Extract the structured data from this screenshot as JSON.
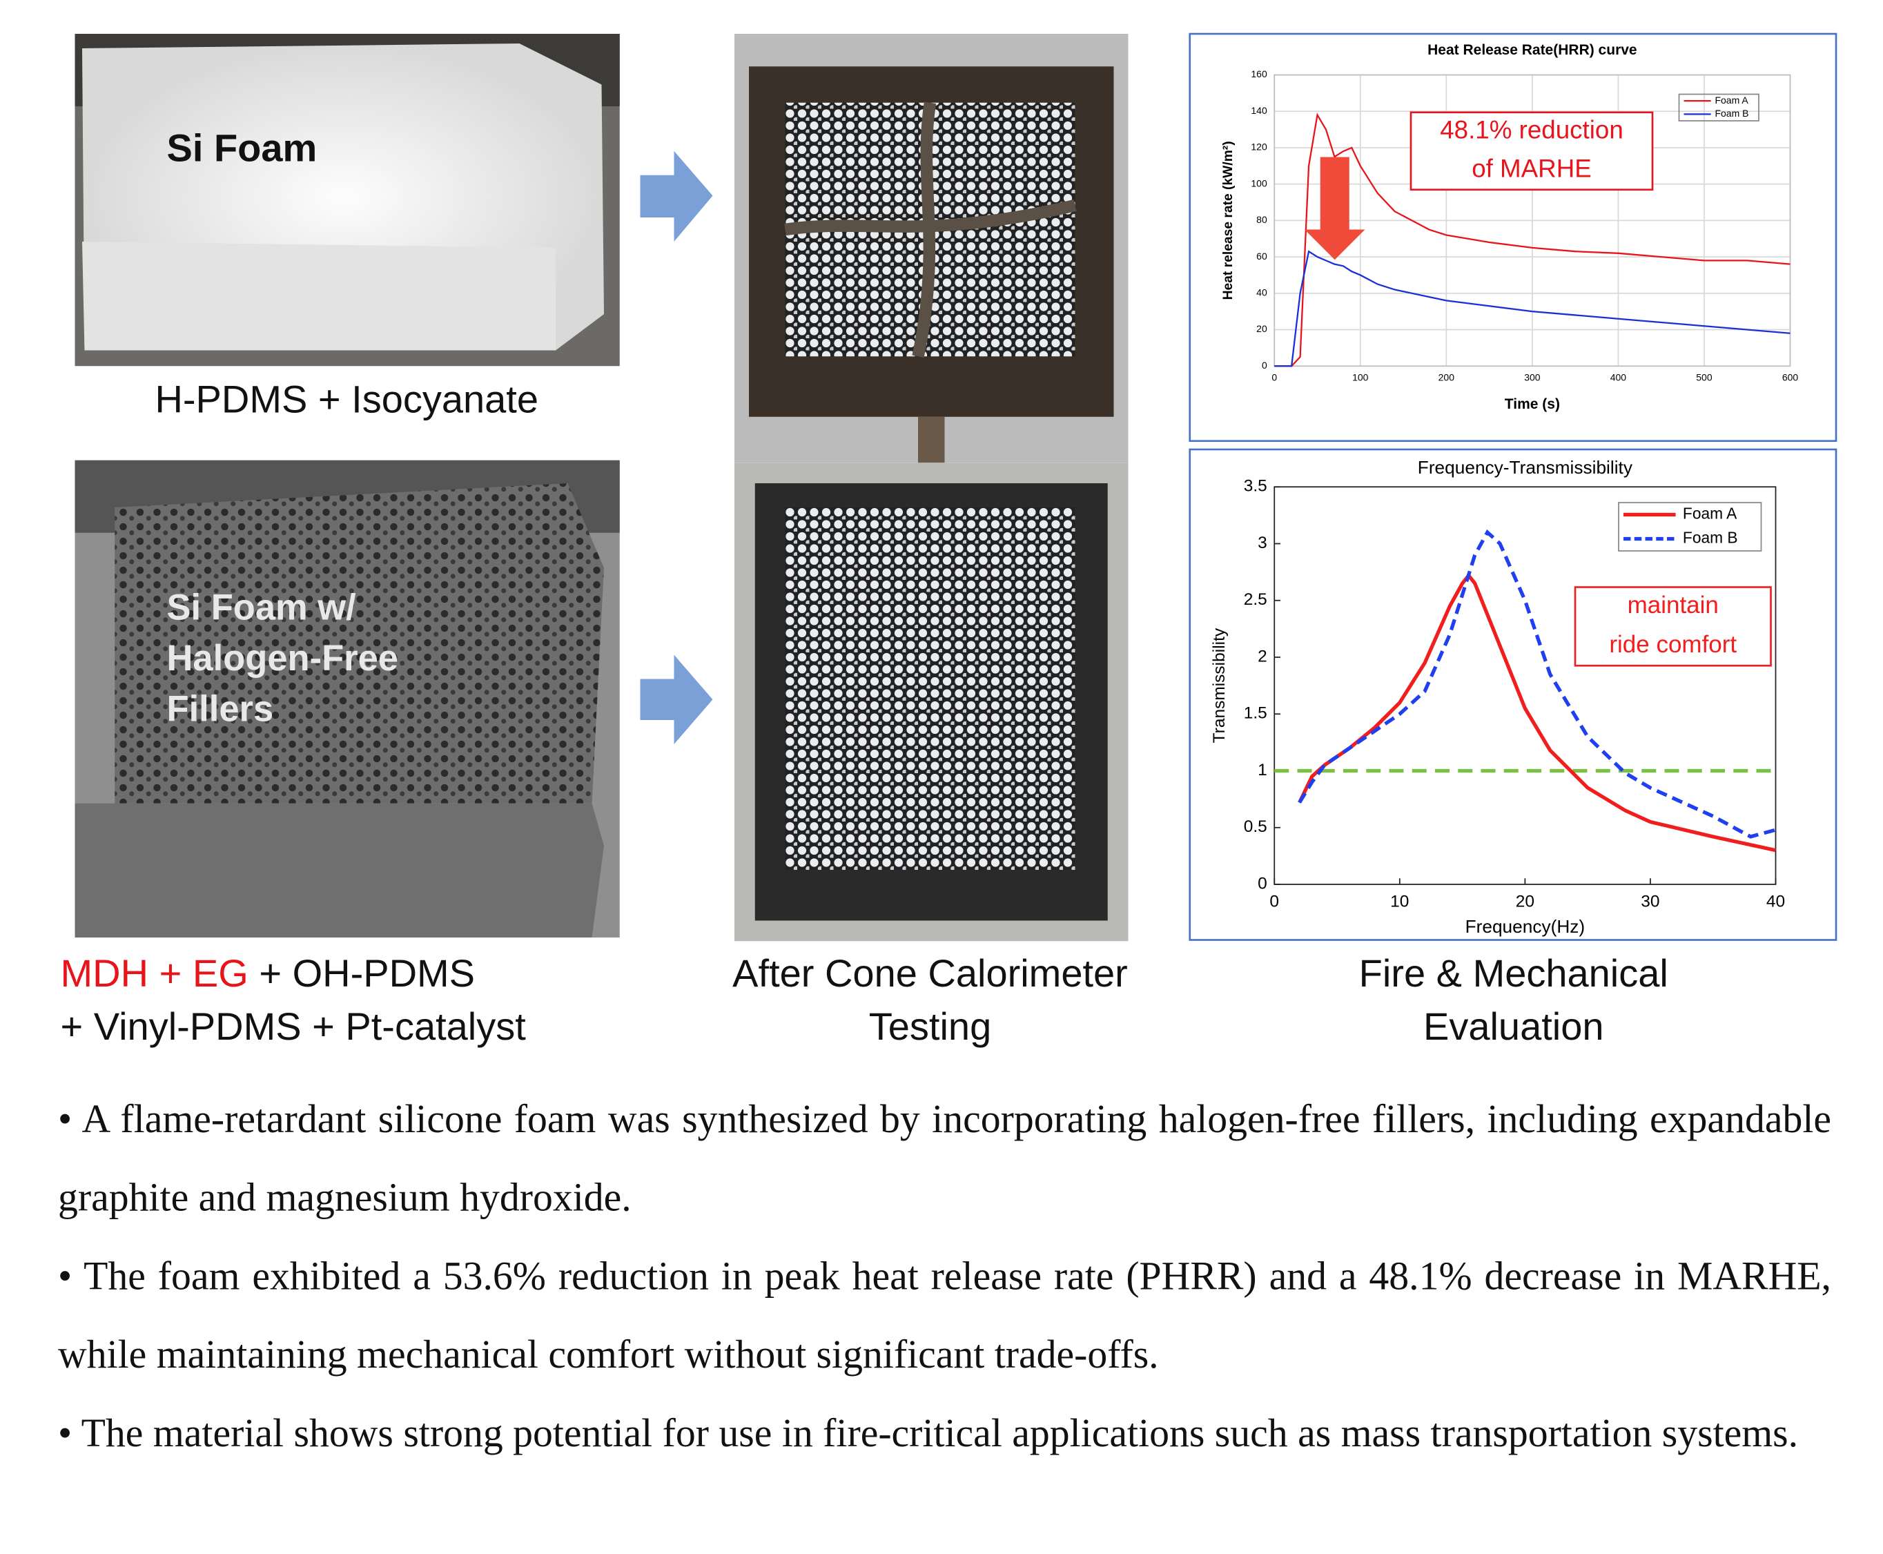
{
  "photos": [
    {
      "label": [
        "Si Foam"
      ],
      "caption": [
        "H-PDMS + Isocyanate"
      ]
    },
    {
      "label": [
        "Si Foam  w/",
        "Halogen-Free",
        "Fillers"
      ],
      "caption_red": "MDH + EG",
      "caption": [
        " + OH-PDMS",
        "+ Vinyl-PDMS + Pt-catalyst"
      ]
    },
    {
      "caption": [
        "After Cone Calorimeter",
        "Testing"
      ]
    },
    {
      "caption": [
        "Fire & Mechanical",
        "Evaluation"
      ]
    }
  ],
  "chart_data": [
    {
      "type": "line",
      "title": "Heat Release Rate(HRR) curve",
      "x_label": "Time (s)",
      "y_label": "Heat release rate (kW/m²)",
      "xlim": [
        0,
        600
      ],
      "xticks": [
        0,
        100,
        200,
        300,
        400,
        500,
        600
      ],
      "ylim": [
        0,
        160
      ],
      "yticks": [
        0,
        20,
        40,
        60,
        80,
        100,
        120,
        140,
        160
      ],
      "grid": true,
      "series": [
        {
          "name": "Foam A",
          "color": "#e8141b",
          "linestyle": "solid",
          "x": [
            0,
            20,
            30,
            40,
            50,
            60,
            70,
            80,
            90,
            100,
            120,
            140,
            160,
            180,
            200,
            250,
            300,
            350,
            400,
            450,
            500,
            550,
            600
          ],
          "values": [
            0,
            0,
            5,
            110,
            138,
            130,
            115,
            118,
            120,
            110,
            95,
            85,
            80,
            75,
            72,
            68,
            65,
            63,
            62,
            60,
            58,
            58,
            56
          ]
        },
        {
          "name": "Foam B",
          "color": "#1a2fd6",
          "linestyle": "solid",
          "x": [
            0,
            20,
            30,
            40,
            50,
            60,
            70,
            80,
            90,
            100,
            120,
            140,
            160,
            180,
            200,
            250,
            300,
            350,
            400,
            450,
            500,
            550,
            600
          ],
          "values": [
            0,
            0,
            40,
            63,
            60,
            58,
            56,
            55,
            52,
            50,
            45,
            42,
            40,
            38,
            36,
            33,
            30,
            28,
            26,
            24,
            22,
            20,
            18
          ]
        }
      ],
      "annotation": [
        "48.1% reduction",
        "of MARHE"
      ],
      "annotation_color": "#e8141b"
    },
    {
      "type": "line",
      "title": "Frequency-Transmissibility",
      "x_label": "Frequency(Hz)",
      "y_label": "Transmissibility",
      "xlim": [
        0,
        40
      ],
      "xticks": [
        0,
        10,
        20,
        30,
        40
      ],
      "ylim": [
        0,
        3.5
      ],
      "yticks": [
        0,
        0.5,
        1,
        1.5,
        2,
        2.5,
        3,
        3.5
      ],
      "grid": false,
      "series": [
        {
          "name": "Foam A",
          "color": "#f21d1d",
          "linestyle": "solid",
          "x": [
            2,
            3,
            4,
            6,
            8,
            10,
            12,
            14,
            15,
            15.5,
            16,
            18,
            20,
            22,
            25,
            28,
            30,
            35,
            40
          ],
          "values": [
            0.72,
            0.95,
            1.05,
            1.2,
            1.38,
            1.6,
            1.95,
            2.45,
            2.65,
            2.72,
            2.65,
            2.1,
            1.55,
            1.18,
            0.85,
            0.65,
            0.55,
            0.42,
            0.3
          ]
        },
        {
          "name": "Foam B",
          "color": "#1f3ff0",
          "linestyle": "dashed",
          "x": [
            2,
            3,
            4,
            6,
            8,
            10,
            12,
            14,
            16,
            17,
            18,
            20,
            22,
            25,
            28,
            30,
            35,
            38,
            40
          ],
          "values": [
            0.72,
            0.9,
            1.05,
            1.2,
            1.35,
            1.5,
            1.7,
            2.2,
            2.9,
            3.1,
            3.0,
            2.5,
            1.85,
            1.3,
            0.98,
            0.85,
            0.6,
            0.42,
            0.48
          ]
        }
      ],
      "reference_line": {
        "value": 1,
        "color": "#7ac143",
        "linestyle": "dashed"
      },
      "annotation": [
        "maintain",
        "ride comfort"
      ],
      "annotation_color": "#f21d1d"
    }
  ],
  "bullets": [
    "A flame-retardant silicone foam was synthesized by incorporating halogen-free fillers, including expandable graphite and magnesium hydroxide.",
    "The foam exhibited a 53.6% reduction in peak heat release rate (PHRR) and a 48.1% decrease in MARHE, while maintaining mechanical comfort without significant trade-offs.",
    "The material shows strong potential for use in fire-critical applications such as mass transportation systems."
  ]
}
